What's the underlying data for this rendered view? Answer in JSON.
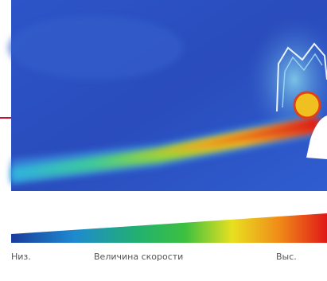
{
  "legend": {
    "low": "Низ.",
    "title": "Величина скорости",
    "high": "Выс."
  }
}
